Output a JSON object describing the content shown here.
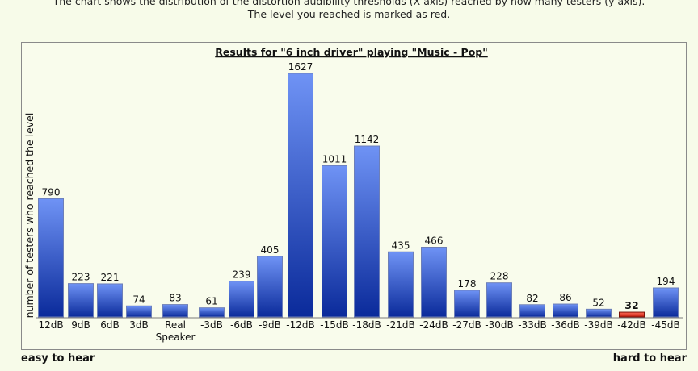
{
  "intro": {
    "line1": "The chart shows the distribution of the distortion audibility thresholds (X axis) reached by how many testers (y axis).",
    "line2": "The level you reached is marked as red."
  },
  "footer": {
    "left": "easy to hear",
    "right": "hard to hear"
  },
  "chart_data": {
    "type": "bar",
    "title": "Results for \"6 inch driver\" playing \"Music - Pop\"",
    "ylabel": "number of testers who reached the level",
    "xlabel": "",
    "categories": [
      "12dB",
      "9dB",
      "6dB",
      "3dB",
      "Real Speaker",
      "-3dB",
      "-6dB",
      "-9dB",
      "-12dB",
      "-15dB",
      "-18dB",
      "-21dB",
      "-24dB",
      "-27dB",
      "-30dB",
      "-33dB",
      "-36dB",
      "-39dB",
      "-42dB",
      "-45dB"
    ],
    "values": [
      790,
      223,
      221,
      74,
      83,
      61,
      239,
      405,
      1627,
      1011,
      1142,
      435,
      466,
      178,
      228,
      82,
      86,
      52,
      32,
      194
    ],
    "highlight_index": 18,
    "colors": {
      "bar": "#3355dd",
      "bar_light": "#6f93f5",
      "bar_dark": "#0a2a9a",
      "highlight": "#e02a1a",
      "highlight_light": "#ff6a55"
    }
  }
}
